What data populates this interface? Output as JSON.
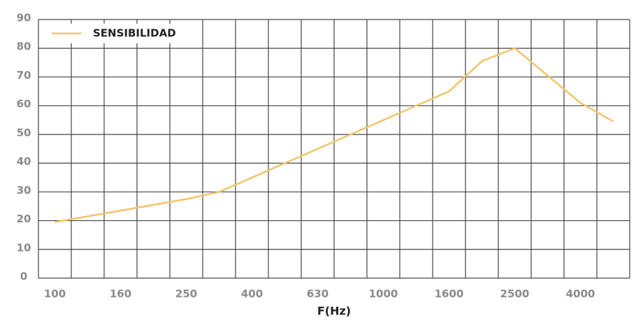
{
  "chart_data": {
    "type": "line",
    "x_label": "F(Hz)",
    "categories": [
      "100",
      null,
      "160",
      null,
      "250",
      null,
      "400",
      null,
      "630",
      null,
      "1000",
      null,
      "1600",
      null,
      "2500",
      null,
      "4000",
      null
    ],
    "series": [
      {
        "name": "SENSIBILIDAD",
        "color": "#f2c46a",
        "values": [
          19.5,
          21.5,
          23.5,
          25.5,
          27.5,
          30,
          35,
          40,
          45,
          50,
          55,
          60,
          65,
          75.5,
          80,
          70.5,
          61,
          54.5
        ]
      }
    ],
    "ylim": [
      0,
      90
    ],
    "yticks": [
      0,
      10,
      20,
      30,
      40,
      50,
      60,
      70,
      80,
      90
    ],
    "grid": true,
    "legend": "top-left"
  }
}
